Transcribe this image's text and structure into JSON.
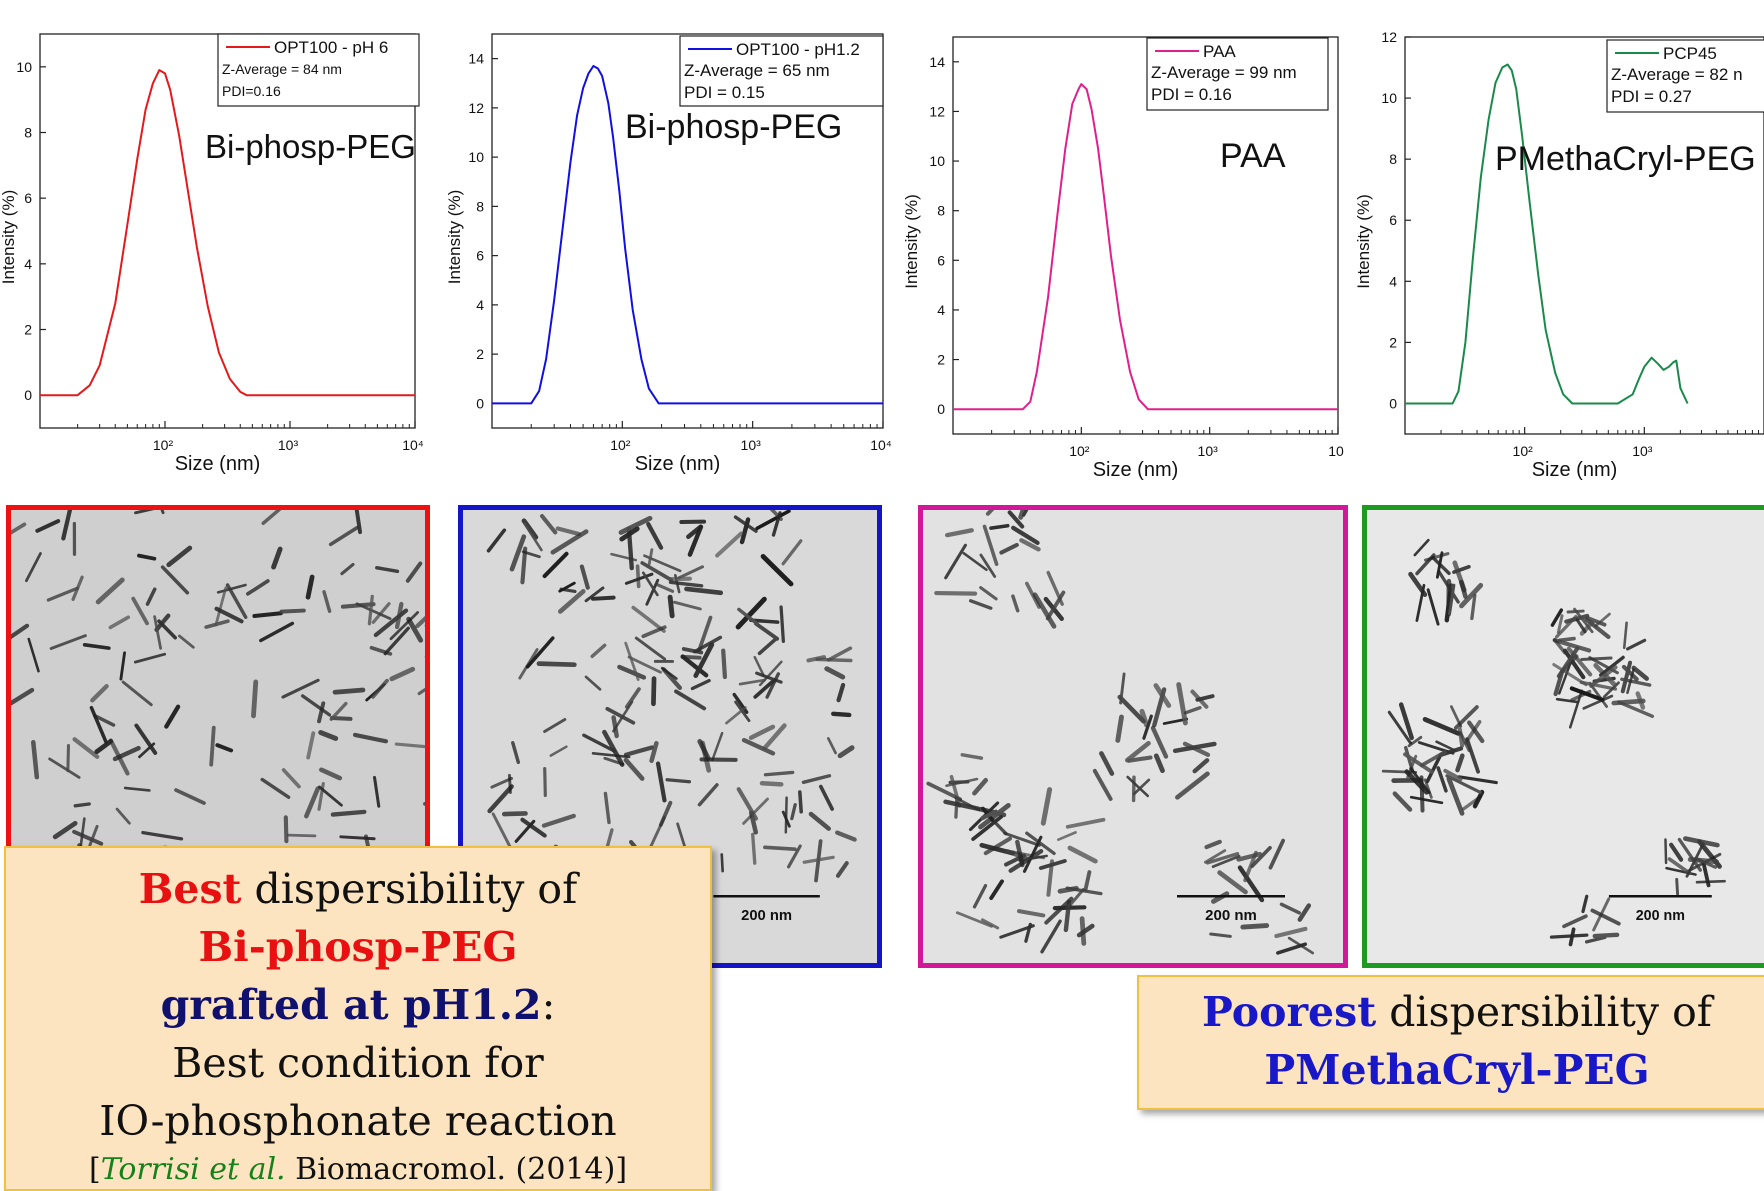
{
  "chart_data": [
    {
      "type": "line",
      "xscale": "log",
      "xlim": [
        10,
        10000
      ],
      "ylim": [
        -1,
        11
      ],
      "yticks": [
        0,
        2,
        4,
        6,
        8,
        10
      ],
      "xticks": [
        100,
        1000,
        10000
      ],
      "xtick_labels": [
        "10²",
        "10³",
        "10⁴"
      ],
      "xlabel": "Size (nm)",
      "ylabel": "Intensity (%)",
      "color": "#e41a1a",
      "series": [
        {
          "name": "OPT100 - pH 6",
          "x": [
            10,
            20,
            25,
            30,
            40,
            50,
            60,
            70,
            80,
            90,
            100,
            110,
            130,
            150,
            180,
            220,
            270,
            330,
            400,
            450,
            500,
            700,
            1000,
            10000
          ],
          "y": [
            0,
            0,
            0.3,
            0.9,
            2.8,
            5.2,
            7.2,
            8.7,
            9.5,
            9.9,
            9.8,
            9.3,
            7.9,
            6.4,
            4.5,
            2.7,
            1.3,
            0.5,
            0.1,
            0,
            0,
            0,
            0,
            0
          ]
        }
      ],
      "legend_lines": [
        "Z-Average = 84 nm",
        "PDI=0.16"
      ],
      "annotation": "Bi-phosp-PEG"
    },
    {
      "type": "line",
      "xscale": "log",
      "xlim": [
        10,
        10000
      ],
      "ylim": [
        -1,
        15
      ],
      "yticks": [
        0,
        2,
        4,
        6,
        8,
        10,
        12,
        14
      ],
      "xticks": [
        100,
        1000,
        10000
      ],
      "xtick_labels": [
        "10²",
        "10³",
        "10⁴"
      ],
      "xlabel": "Size (nm)",
      "ylabel": "Intensity (%)",
      "color": "#1010e0",
      "series": [
        {
          "name": "OPT100 - pH1.2",
          "x": [
            10,
            20,
            23,
            26,
            30,
            35,
            40,
            45,
            50,
            55,
            60,
            65,
            70,
            78,
            85,
            95,
            105,
            120,
            140,
            160,
            190,
            220,
            300,
            1000,
            10000
          ],
          "y": [
            0,
            0,
            0.5,
            1.8,
            4.2,
            7.2,
            9.8,
            11.7,
            12.8,
            13.4,
            13.7,
            13.6,
            13.3,
            12.2,
            10.8,
            8.6,
            6.3,
            3.8,
            1.8,
            0.6,
            0,
            0,
            0,
            0,
            0
          ]
        }
      ],
      "legend_lines": [
        "Z-Average = 65 nm",
        "PDI = 0.15"
      ],
      "annotation": "Bi-phosp-PEG"
    },
    {
      "type": "line",
      "xscale": "log",
      "xlim": [
        10,
        10000
      ],
      "ylim": [
        -1,
        15
      ],
      "yticks": [
        0,
        2,
        4,
        6,
        8,
        10,
        12,
        14
      ],
      "xticks": [
        100,
        1000,
        10000
      ],
      "xtick_labels": [
        "10²",
        "10³",
        "10"
      ],
      "xlabel": "Size (nm)",
      "ylabel": "Intensity (%)",
      "color": "#e0208a",
      "series": [
        {
          "name": "PAA",
          "x": [
            10,
            35,
            40,
            45,
            55,
            65,
            75,
            85,
            95,
            100,
            110,
            120,
            135,
            150,
            170,
            200,
            240,
            280,
            330,
            380,
            1000,
            10000
          ],
          "y": [
            0,
            0,
            0.3,
            1.5,
            4.5,
            7.8,
            10.5,
            12.3,
            12.9,
            13.1,
            12.9,
            12.1,
            10.5,
            8.6,
            6.2,
            3.6,
            1.5,
            0.4,
            0,
            0,
            0,
            0
          ]
        }
      ],
      "legend_lines": [
        "Z-Average = 99 nm",
        "PDI = 0.16"
      ],
      "annotation": "PAA"
    },
    {
      "type": "line",
      "xscale": "log",
      "xlim": [
        10,
        10000
      ],
      "ylim": [
        -1,
        12
      ],
      "yticks": [
        0,
        2,
        4,
        6,
        8,
        10,
        12
      ],
      "xticks": [
        100,
        1000
      ],
      "xtick_labels": [
        "10²",
        "10³"
      ],
      "xlabel": "Size (nm)",
      "ylabel": "Intensity (%)",
      "color": "#1a8a4a",
      "series": [
        {
          "name": "PCP45",
          "x": [
            10,
            25,
            28,
            32,
            37,
            43,
            50,
            57,
            65,
            72,
            78,
            85,
            95,
            110,
            130,
            150,
            180,
            210,
            250,
            300,
            600,
            800,
            900,
            1000,
            1150,
            1300,
            1450,
            1600,
            1750,
            1850,
            2000,
            2300
          ],
          "y": [
            0,
            0,
            0.4,
            2.0,
            4.8,
            7.4,
            9.3,
            10.5,
            11.0,
            11.1,
            10.9,
            10.3,
            8.8,
            6.6,
            4.2,
            2.4,
            1.0,
            0.3,
            0,
            0,
            0,
            0.3,
            0.8,
            1.2,
            1.5,
            1.3,
            1.1,
            1.2,
            1.35,
            1.4,
            0.5,
            0
          ]
        }
      ],
      "legend_lines": [
        "Z-Average = 82 n",
        "PDI = 0.27"
      ],
      "annotation": "PMethaCryl-PEG"
    }
  ],
  "tem_images": [
    {
      "scale_bar": "",
      "border_color": "#ee1111"
    },
    {
      "scale_bar": "200 nm",
      "border_color": "#1515c8"
    },
    {
      "scale_bar": "200 nm",
      "border_color": "#d01899"
    },
    {
      "scale_bar": "200 nm",
      "border_color": "#1d9a20"
    }
  ],
  "callout_left": {
    "word_best": "Best",
    "text1": " dispersibility of",
    "polymer": "Bi-phosp-PEG",
    "grafted": "grafted at pH1.2",
    "colon": ":",
    "line3": "Best condition for",
    "line4": "IO-phosphonate reaction",
    "ref_open": "[",
    "ref_authors": "Torrisi et al.",
    "ref_rest": " Biomacromol. (2014)]"
  },
  "callout_right": {
    "word_poorest": "Poorest",
    "text1": " dispersibility of",
    "polymer": "PMethaCryl-PEG"
  }
}
